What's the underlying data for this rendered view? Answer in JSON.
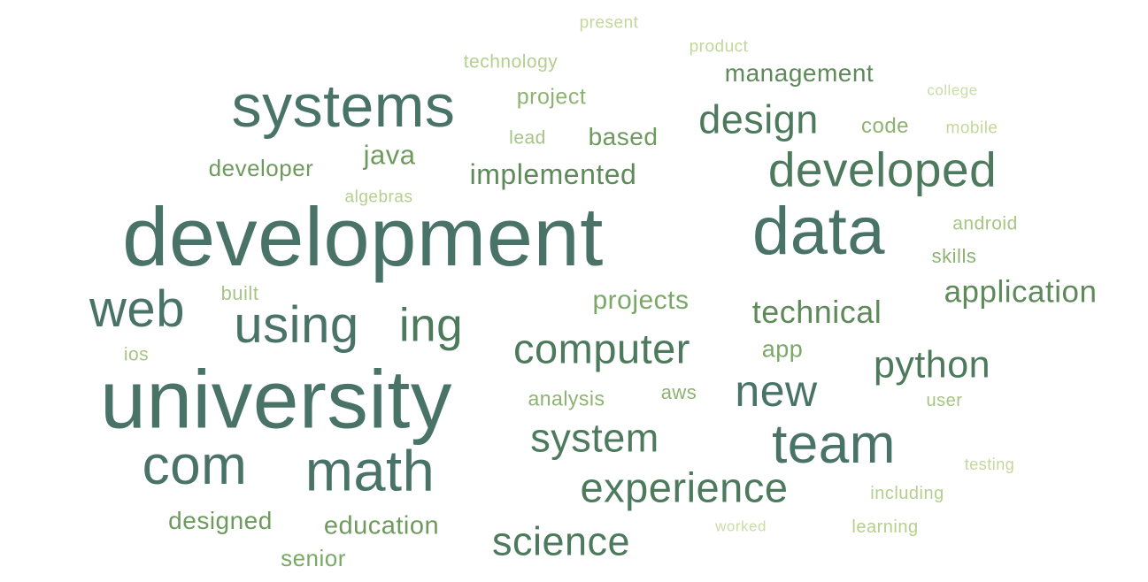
{
  "words": [
    {
      "text": "development",
      "weight": 1.0,
      "color": "#4a7367"
    },
    {
      "text": "university",
      "weight": 0.99,
      "color": "#4a7367"
    },
    {
      "text": "data",
      "weight": 0.8,
      "color": "#4a7367"
    },
    {
      "text": "systems",
      "weight": 0.72,
      "color": "#4a7367"
    },
    {
      "text": "math",
      "weight": 0.69,
      "color": "#4a7367"
    },
    {
      "text": "com",
      "weight": 0.66,
      "color": "#4a7367"
    },
    {
      "text": "team",
      "weight": 0.66,
      "color": "#4a7367"
    },
    {
      "text": "using",
      "weight": 0.62,
      "color": "#4a7367"
    },
    {
      "text": "web",
      "weight": 0.62,
      "color": "#4a7367"
    },
    {
      "text": "developed",
      "weight": 0.58,
      "color": "#4d7a5c"
    },
    {
      "text": "ing",
      "weight": 0.56,
      "color": "#4d7a5c"
    },
    {
      "text": "new",
      "weight": 0.52,
      "color": "#4a7367"
    },
    {
      "text": "computer",
      "weight": 0.5,
      "color": "#4d7a5c"
    },
    {
      "text": "experience",
      "weight": 0.5,
      "color": "#4d7a5c"
    },
    {
      "text": "design",
      "weight": 0.48,
      "color": "#4d7a5c"
    },
    {
      "text": "system",
      "weight": 0.48,
      "color": "#4d7a5c"
    },
    {
      "text": "science",
      "weight": 0.48,
      "color": "#4d7a5c"
    },
    {
      "text": "python",
      "weight": 0.45,
      "color": "#4d7a5c"
    },
    {
      "text": "technical",
      "weight": 0.38,
      "color": "#5e8a5a"
    },
    {
      "text": "application",
      "weight": 0.37,
      "color": "#5e8a5a"
    },
    {
      "text": "implemented",
      "weight": 0.34,
      "color": "#5e8a5a"
    },
    {
      "text": "java",
      "weight": 0.33,
      "color": "#6e9a5e"
    },
    {
      "text": "projects",
      "weight": 0.32,
      "color": "#7aa866"
    },
    {
      "text": "education",
      "weight": 0.31,
      "color": "#6e9a5e"
    },
    {
      "text": "management",
      "weight": 0.3,
      "color": "#5e8a5a"
    },
    {
      "text": "based",
      "weight": 0.29,
      "color": "#6e9a5e"
    },
    {
      "text": "designed",
      "weight": 0.29,
      "color": "#6e9a5e"
    },
    {
      "text": "app",
      "weight": 0.28,
      "color": "#7aa866"
    },
    {
      "text": "developer",
      "weight": 0.27,
      "color": "#6e9a5e"
    },
    {
      "text": "senior",
      "weight": 0.27,
      "color": "#7aa866"
    },
    {
      "text": "project",
      "weight": 0.26,
      "color": "#8db370"
    },
    {
      "text": "code",
      "weight": 0.25,
      "color": "#8db370"
    },
    {
      "text": "analysis",
      "weight": 0.24,
      "color": "#8db370"
    },
    {
      "text": "skills",
      "weight": 0.23,
      "color": "#8db370"
    },
    {
      "text": "built",
      "weight": 0.23,
      "color": "#a6c584"
    },
    {
      "text": "aws",
      "weight": 0.23,
      "color": "#8db370"
    },
    {
      "text": "lead",
      "weight": 0.22,
      "color": "#a6c584"
    },
    {
      "text": "technology",
      "weight": 0.22,
      "color": "#b5cf8c"
    },
    {
      "text": "android",
      "weight": 0.22,
      "color": "#a6c584"
    },
    {
      "text": "ios",
      "weight": 0.22,
      "color": "#a6c584"
    },
    {
      "text": "user",
      "weight": 0.21,
      "color": "#a6c584"
    },
    {
      "text": "including",
      "weight": 0.21,
      "color": "#b5cf8c"
    },
    {
      "text": "learning",
      "weight": 0.21,
      "color": "#b5cf8c"
    },
    {
      "text": "algebras",
      "weight": 0.2,
      "color": "#b5cf8c"
    },
    {
      "text": "mobile",
      "weight": 0.2,
      "color": "#c2d89a"
    },
    {
      "text": "product",
      "weight": 0.2,
      "color": "#c2d89a"
    },
    {
      "text": "present",
      "weight": 0.2,
      "color": "#c2d89a"
    },
    {
      "text": "testing",
      "weight": 0.19,
      "color": "#c2d89a"
    },
    {
      "text": "college",
      "weight": 0.18,
      "color": "#c9dda5"
    },
    {
      "text": "worked",
      "weight": 0.18,
      "color": "#c9dda5"
    }
  ]
}
